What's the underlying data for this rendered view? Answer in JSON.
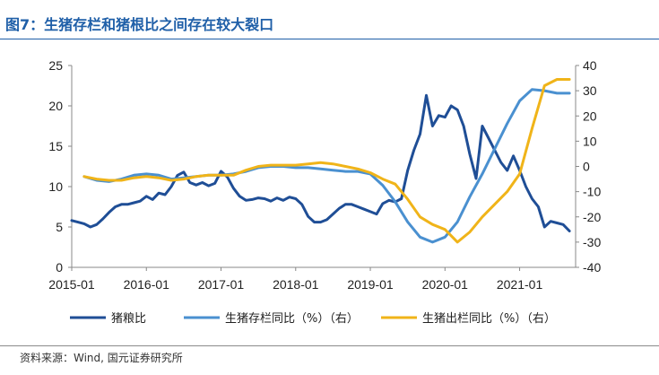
{
  "figure": {
    "title": "图7：生猪存栏和猪根比之间存在较大裂口",
    "source": "资料来源：Wind, 国元证券研究所"
  },
  "colors": {
    "title": "#1f5fa8",
    "ratio": "#1f4e96",
    "inventory": "#4a90d0",
    "slaughter": "#f0b419"
  },
  "chart_data": {
    "type": "line",
    "title": "",
    "x_ticks": [
      "2015-01",
      "2016-01",
      "2017-01",
      "2018-01",
      "2019-01",
      "2020-01",
      "2021-01"
    ],
    "xlim": [
      "2015-01",
      "2021-10"
    ],
    "y_left": {
      "lim": [
        0,
        25
      ],
      "ticks": [
        "0",
        "5",
        "10",
        "15",
        "20",
        "25"
      ]
    },
    "y_right": {
      "lim": [
        -40,
        40
      ],
      "ticks": [
        "-40",
        "-30",
        "-20",
        "-10",
        "0",
        "10",
        "20",
        "30",
        "40"
      ]
    },
    "legend_position": "bottom",
    "grid": false,
    "series": [
      {
        "name": "猪粮比",
        "axis": "left",
        "points": [
          [
            "2015-01",
            5.8
          ],
          [
            "2015-02",
            5.6
          ],
          [
            "2015-03",
            5.4
          ],
          [
            "2015-04",
            5.0
          ],
          [
            "2015-05",
            5.3
          ],
          [
            "2015-06",
            6.0
          ],
          [
            "2015-07",
            6.8
          ],
          [
            "2015-08",
            7.5
          ],
          [
            "2015-09",
            7.8
          ],
          [
            "2015-10",
            7.8
          ],
          [
            "2015-11",
            8.0
          ],
          [
            "2015-12",
            8.2
          ],
          [
            "2016-01",
            8.8
          ],
          [
            "2016-02",
            8.4
          ],
          [
            "2016-03",
            9.2
          ],
          [
            "2016-04",
            9.0
          ],
          [
            "2016-05",
            10.0
          ],
          [
            "2016-06",
            11.4
          ],
          [
            "2016-07",
            11.8
          ],
          [
            "2016-08",
            10.5
          ],
          [
            "2016-09",
            10.2
          ],
          [
            "2016-10",
            10.5
          ],
          [
            "2016-11",
            10.1
          ],
          [
            "2016-12",
            10.4
          ],
          [
            "2017-01",
            11.9
          ],
          [
            "2017-02",
            11.2
          ],
          [
            "2017-03",
            9.8
          ],
          [
            "2017-04",
            8.8
          ],
          [
            "2017-05",
            8.3
          ],
          [
            "2017-06",
            8.4
          ],
          [
            "2017-07",
            8.6
          ],
          [
            "2017-08",
            8.5
          ],
          [
            "2017-09",
            8.2
          ],
          [
            "2017-10",
            8.6
          ],
          [
            "2017-11",
            8.3
          ],
          [
            "2017-12",
            8.7
          ],
          [
            "2018-01",
            8.5
          ],
          [
            "2018-02",
            7.8
          ],
          [
            "2018-03",
            6.3
          ],
          [
            "2018-04",
            5.6
          ],
          [
            "2018-05",
            5.6
          ],
          [
            "2018-06",
            5.9
          ],
          [
            "2018-07",
            6.6
          ],
          [
            "2018-08",
            7.3
          ],
          [
            "2018-09",
            7.8
          ],
          [
            "2018-10",
            7.8
          ],
          [
            "2018-11",
            7.5
          ],
          [
            "2018-12",
            7.2
          ],
          [
            "2019-01",
            6.9
          ],
          [
            "2019-02",
            6.6
          ],
          [
            "2019-03",
            7.9
          ],
          [
            "2019-04",
            8.3
          ],
          [
            "2019-05",
            8.1
          ],
          [
            "2019-06",
            8.5
          ],
          [
            "2019-07",
            12.0
          ],
          [
            "2019-08",
            14.5
          ],
          [
            "2019-09",
            16.5
          ],
          [
            "2019-10",
            21.3
          ],
          [
            "2019-11",
            17.5
          ],
          [
            "2019-12",
            18.8
          ],
          [
            "2020-01",
            18.6
          ],
          [
            "2020-02",
            20.0
          ],
          [
            "2020-03",
            19.5
          ],
          [
            "2020-04",
            17.5
          ],
          [
            "2020-05",
            14.0
          ],
          [
            "2020-06",
            11.0
          ],
          [
            "2020-07",
            17.5
          ],
          [
            "2020-08",
            16.0
          ],
          [
            "2020-09",
            14.5
          ],
          [
            "2020-10",
            13.0
          ],
          [
            "2020-11",
            12.0
          ],
          [
            "2020-12",
            13.8
          ],
          [
            "2021-01",
            12.0
          ],
          [
            "2021-02",
            10.0
          ],
          [
            "2021-03",
            8.5
          ],
          [
            "2021-04",
            7.5
          ],
          [
            "2021-05",
            5.0
          ],
          [
            "2021-06",
            5.7
          ],
          [
            "2021-07",
            5.5
          ],
          [
            "2021-08",
            5.3
          ],
          [
            "2021-09",
            4.5
          ]
        ]
      },
      {
        "name": "生猪存栏同比（%）（右）",
        "axis": "right",
        "points": [
          [
            "2015-03",
            -4.0
          ],
          [
            "2015-05",
            -5.5
          ],
          [
            "2015-07",
            -6.0
          ],
          [
            "2015-09",
            -5.0
          ],
          [
            "2015-11",
            -3.5
          ],
          [
            "2016-01",
            -3.0
          ],
          [
            "2016-03",
            -3.5
          ],
          [
            "2016-05",
            -5.0
          ],
          [
            "2016-07",
            -4.5
          ],
          [
            "2016-09",
            -4.0
          ],
          [
            "2016-11",
            -3.5
          ],
          [
            "2017-01",
            -3.5
          ],
          [
            "2017-03",
            -3.0
          ],
          [
            "2017-05",
            -2.0
          ],
          [
            "2017-07",
            -0.5
          ],
          [
            "2017-09",
            0.0
          ],
          [
            "2017-11",
            0.0
          ],
          [
            "2018-01",
            -0.5
          ],
          [
            "2018-03",
            -0.5
          ],
          [
            "2018-05",
            -1.0
          ],
          [
            "2018-07",
            -1.5
          ],
          [
            "2018-09",
            -2.0
          ],
          [
            "2018-11",
            -2.0
          ],
          [
            "2019-01",
            -3.0
          ],
          [
            "2019-03",
            -7.5
          ],
          [
            "2019-05",
            -14.0
          ],
          [
            "2019-07",
            -22.0
          ],
          [
            "2019-09",
            -28.0
          ],
          [
            "2019-11",
            -30.0
          ],
          [
            "2020-01",
            -28.0
          ],
          [
            "2020-03",
            -22.0
          ],
          [
            "2020-05",
            -12.0
          ],
          [
            "2020-07",
            -3.0
          ],
          [
            "2020-09",
            7.0
          ],
          [
            "2020-11",
            17.0
          ],
          [
            "2021-01",
            26.0
          ],
          [
            "2021-03",
            30.5
          ],
          [
            "2021-05",
            30.0
          ],
          [
            "2021-07",
            29.0
          ],
          [
            "2021-09",
            29.0
          ]
        ]
      },
      {
        "name": "生猪出栏同比（%）（右）",
        "axis": "right",
        "points": [
          [
            "2015-03",
            -4.0
          ],
          [
            "2015-05",
            -5.0
          ],
          [
            "2015-07",
            -5.5
          ],
          [
            "2015-09",
            -5.5
          ],
          [
            "2015-11",
            -4.5
          ],
          [
            "2016-01",
            -4.0
          ],
          [
            "2016-03",
            -4.5
          ],
          [
            "2016-05",
            -5.5
          ],
          [
            "2016-07",
            -5.0
          ],
          [
            "2016-09",
            -4.0
          ],
          [
            "2016-11",
            -3.5
          ],
          [
            "2017-01",
            -3.5
          ],
          [
            "2017-03",
            -3.5
          ],
          [
            "2017-05",
            -1.5
          ],
          [
            "2017-07",
            0.0
          ],
          [
            "2017-09",
            0.5
          ],
          [
            "2017-11",
            0.5
          ],
          [
            "2018-01",
            0.5
          ],
          [
            "2018-03",
            1.0
          ],
          [
            "2018-05",
            1.5
          ],
          [
            "2018-07",
            1.0
          ],
          [
            "2018-09",
            0.0
          ],
          [
            "2018-11",
            -1.0
          ],
          [
            "2019-01",
            -2.5
          ],
          [
            "2019-03",
            -5.0
          ],
          [
            "2019-05",
            -7.0
          ],
          [
            "2019-07",
            -13.0
          ],
          [
            "2019-09",
            -20.0
          ],
          [
            "2019-11",
            -23.0
          ],
          [
            "2020-01",
            -25.0
          ],
          [
            "2020-03",
            -30.0
          ],
          [
            "2020-05",
            -26.0
          ],
          [
            "2020-07",
            -20.0
          ],
          [
            "2020-09",
            -15.0
          ],
          [
            "2020-11",
            -10.0
          ],
          [
            "2021-01",
            -3.0
          ],
          [
            "2021-03",
            15.0
          ],
          [
            "2021-05",
            32.0
          ],
          [
            "2021-07",
            34.5
          ],
          [
            "2021-09",
            34.5
          ]
        ]
      }
    ]
  }
}
